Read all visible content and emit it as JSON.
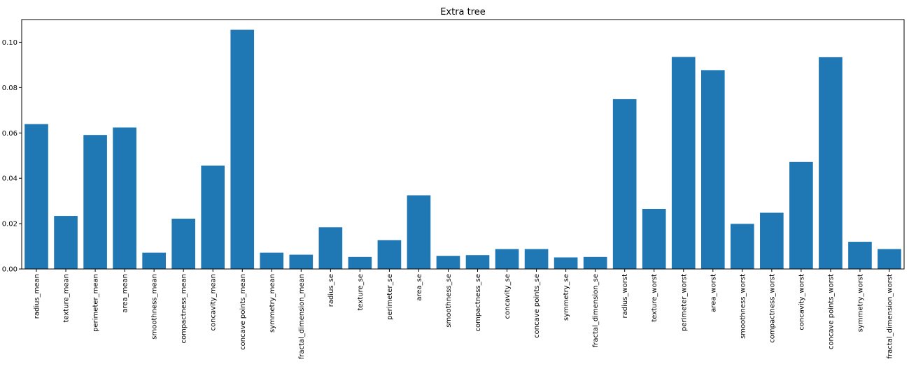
{
  "chart_data": {
    "type": "bar",
    "title": "Extra tree",
    "xlabel": "",
    "ylabel": "",
    "ylim": [
      0,
      0.11
    ],
    "yticks": [
      "0.00",
      "0.02",
      "0.04",
      "0.06",
      "0.08",
      "0.10"
    ],
    "grid": false,
    "colors": {
      "bar": "#1f77b4"
    },
    "categories": [
      "radius_mean",
      "texture_mean",
      "perimeter_mean",
      "area_mean",
      "smoothness_mean",
      "compactness_mean",
      "concavity_mean",
      "concave points_mean",
      "symmetry_mean",
      "fractal_dimension_mean",
      "radius_se",
      "texture_se",
      "perimeter_se",
      "area_se",
      "smoothness_se",
      "compactness_se",
      "concavity_se",
      "concave points_se",
      "symmetry_se",
      "fractal_dimension_se",
      "radius_worst",
      "texture_worst",
      "perimeter_worst",
      "area_worst",
      "smoothness_worst",
      "compactness_worst",
      "concavity_worst",
      "concave points_worst",
      "symmetry_worst",
      "fractal_dimension_worst"
    ],
    "values": [
      0.0639,
      0.0234,
      0.0591,
      0.0624,
      0.0072,
      0.0222,
      0.0456,
      0.1055,
      0.0072,
      0.0063,
      0.0184,
      0.0053,
      0.0127,
      0.0325,
      0.0058,
      0.0061,
      0.0088,
      0.0088,
      0.0051,
      0.0053,
      0.0749,
      0.0265,
      0.0935,
      0.0877,
      0.0199,
      0.0248,
      0.0472,
      0.0934,
      0.012,
      0.0088
    ]
  }
}
